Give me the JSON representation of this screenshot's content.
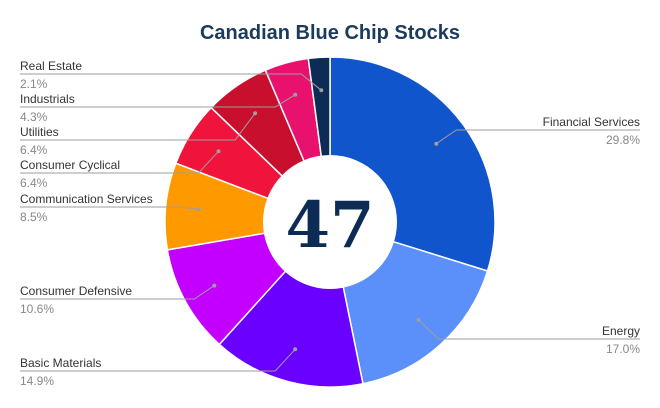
{
  "chart_data": {
    "type": "pie",
    "title": "Canadian Blue Chip Stocks",
    "center_text": "47",
    "donut": true,
    "slices": [
      {
        "label": "Financial Services",
        "value_text": "29.8%",
        "value": 29.8,
        "color": "#1155cc",
        "side": "right"
      },
      {
        "label": "Energy",
        "value_text": "17.0%",
        "value": 17.0,
        "color": "#5b8ff9",
        "side": "right"
      },
      {
        "label": "Basic Materials",
        "value_text": "14.9%",
        "value": 14.9,
        "color": "#6a00ff",
        "side": "left"
      },
      {
        "label": "Consumer Defensive",
        "value_text": "10.6%",
        "value": 10.6,
        "color": "#c300ff",
        "side": "left"
      },
      {
        "label": "Communication Services",
        "value_text": "8.5%",
        "value": 8.5,
        "color": "#ff9900",
        "side": "left"
      },
      {
        "label": "Consumer Cyclical",
        "value_text": "6.4%",
        "value": 6.4,
        "color": "#f0143c",
        "side": "left"
      },
      {
        "label": "Utilities",
        "value_text": "6.4%",
        "value": 6.4,
        "color": "#c8102e",
        "side": "left"
      },
      {
        "label": "Industrials",
        "value_text": "4.3%",
        "value": 4.3,
        "color": "#e8126e",
        "side": "left"
      },
      {
        "label": "Real Estate",
        "value_text": "2.1%",
        "value": 2.1,
        "color": "#0d2c55",
        "side": "left"
      }
    ]
  }
}
